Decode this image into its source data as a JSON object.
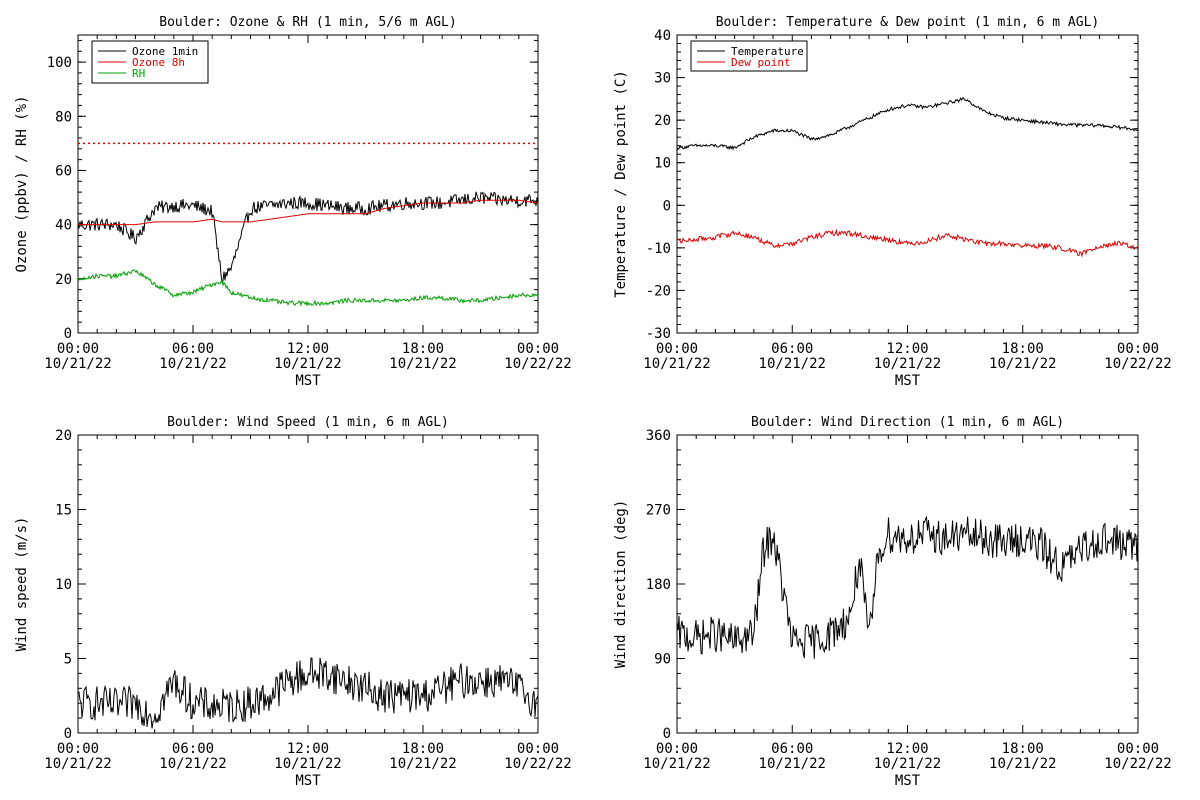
{
  "chart_data": [
    {
      "type": "line",
      "title": "Boulder: Ozone & RH (1 min, 5/6 m AGL)",
      "ylabel": "Ozone (ppbv) / RH (%)",
      "xlabel": "MST",
      "ylim": [
        0,
        110
      ],
      "yticks": [
        0,
        20,
        40,
        60,
        80,
        100
      ],
      "x_ticks": [
        {
          "time": "00:00",
          "date": "10/21/22"
        },
        {
          "time": "06:00",
          "date": "10/21/22"
        },
        {
          "time": "12:00",
          "date": "10/21/22"
        },
        {
          "time": "18:00",
          "date": "10/21/22"
        },
        {
          "time": "00:00",
          "date": "10/22/22"
        }
      ],
      "x_hours": [
        0,
        1,
        2,
        3,
        4,
        5,
        6,
        7,
        7.5,
        8,
        9,
        10,
        11,
        12,
        13,
        14,
        15,
        16,
        17,
        18,
        19,
        20,
        21,
        22,
        23,
        24
      ],
      "legend": "top-left",
      "reference_lines": [
        {
          "y": 70,
          "color": "#e00000",
          "style": "dotted"
        }
      ],
      "series": [
        {
          "name": "Ozone 1min",
          "color": "#000000",
          "noise": 2.5,
          "values": [
            40,
            40,
            40,
            35,
            46,
            47,
            47,
            45,
            20,
            24,
            46,
            47,
            48,
            48,
            47,
            46,
            46,
            47,
            48,
            48,
            48,
            49,
            50,
            49,
            49,
            49
          ]
        },
        {
          "name": "Ozone 8h",
          "color": "#e00000",
          "noise": 0,
          "values": [
            40,
            40,
            40,
            40,
            41,
            41,
            41,
            42,
            41,
            41,
            41,
            42,
            43,
            44,
            44,
            44,
            44,
            46,
            47,
            48,
            48,
            48,
            49,
            49,
            49,
            48
          ]
        },
        {
          "name": "RH",
          "color": "#00a000",
          "noise": 0.8,
          "values": [
            20,
            21,
            21,
            23,
            18,
            14,
            15,
            18,
            19,
            15,
            13,
            12,
            11,
            11,
            11,
            12,
            12,
            12,
            12,
            13,
            13,
            12,
            12,
            13,
            14,
            14
          ]
        }
      ]
    },
    {
      "type": "line",
      "title": "Boulder: Temperature & Dew point (1 min, 6 m AGL)",
      "ylabel": "Temperature / Dew point (C)",
      "xlabel": "MST",
      "ylim": [
        -30,
        40
      ],
      "yticks": [
        -30,
        -20,
        -10,
        0,
        10,
        20,
        30,
        40
      ],
      "x_ticks": [
        {
          "time": "00:00",
          "date": "10/21/22"
        },
        {
          "time": "06:00",
          "date": "10/21/22"
        },
        {
          "time": "12:00",
          "date": "10/21/22"
        },
        {
          "time": "18:00",
          "date": "10/21/22"
        },
        {
          "time": "00:00",
          "date": "10/22/22"
        }
      ],
      "x_hours": [
        0,
        1,
        2,
        3,
        4,
        5,
        6,
        7,
        8,
        9,
        10,
        11,
        12,
        13,
        14,
        15,
        16,
        17,
        18,
        19,
        20,
        21,
        22,
        23,
        24
      ],
      "legend": "top-left",
      "series": [
        {
          "name": "Temperature",
          "color": "#000000",
          "noise": 0.4,
          "values": [
            13.5,
            14,
            14,
            13.5,
            16,
            17.5,
            17.5,
            15.5,
            16.5,
            18.5,
            20.5,
            22.5,
            23.5,
            23,
            24,
            25,
            22,
            20.5,
            20,
            19.5,
            19,
            18.8,
            18.8,
            18.3,
            17.8
          ]
        },
        {
          "name": "Dew point",
          "color": "#e00000",
          "noise": 0.6,
          "values": [
            -8.5,
            -8,
            -7.5,
            -6.5,
            -7.5,
            -9.5,
            -9,
            -7.5,
            -6.5,
            -6.5,
            -7.5,
            -8,
            -9,
            -8.5,
            -7,
            -8,
            -9,
            -9,
            -9.5,
            -9.5,
            -10,
            -11.5,
            -9.5,
            -9,
            -10
          ]
        }
      ]
    },
    {
      "type": "line",
      "title": "Boulder: Wind Speed (1 min, 6 m AGL)",
      "ylabel": "Wind speed (m/s)",
      "xlabel": "MST",
      "ylim": [
        0,
        20
      ],
      "yticks": [
        0,
        5,
        10,
        15,
        20
      ],
      "x_ticks": [
        {
          "time": "00:00",
          "date": "10/21/22"
        },
        {
          "time": "06:00",
          "date": "10/21/22"
        },
        {
          "time": "12:00",
          "date": "10/21/22"
        },
        {
          "time": "18:00",
          "date": "10/21/22"
        },
        {
          "time": "00:00",
          "date": "10/22/22"
        }
      ],
      "x_hours": [
        0,
        1,
        2,
        3,
        4,
        5,
        6,
        7,
        8,
        9,
        10,
        11,
        12,
        13,
        14,
        15,
        16,
        17,
        18,
        19,
        20,
        21,
        22,
        23,
        24
      ],
      "series": [
        {
          "color": "#000000",
          "noise": 1.2,
          "values": [
            2,
            2,
            1.8,
            2,
            1.2,
            3.5,
            2,
            1.8,
            1.8,
            2,
            2.5,
            3.5,
            4,
            4,
            3.5,
            3,
            2.5,
            2.5,
            2.5,
            3,
            3.5,
            3.5,
            3.5,
            3,
            2
          ]
        }
      ]
    },
    {
      "type": "line",
      "title": "Boulder: Wind Direction (1 min, 6 m AGL)",
      "ylabel": "Wind direction (deg)",
      "xlabel": "MST",
      "ylim": [
        0,
        360
      ],
      "yticks": [
        0,
        90,
        180,
        270,
        360
      ],
      "x_ticks": [
        {
          "time": "00:00",
          "date": "10/21/22"
        },
        {
          "time": "06:00",
          "date": "10/21/22"
        },
        {
          "time": "12:00",
          "date": "10/21/22"
        },
        {
          "time": "18:00",
          "date": "10/21/22"
        },
        {
          "time": "00:00",
          "date": "10/22/22"
        }
      ],
      "x_hours": [
        0,
        1,
        2,
        3,
        4,
        4.5,
        5,
        6,
        7,
        8,
        9,
        9.5,
        10,
        10.5,
        11,
        12,
        13,
        14,
        15,
        16,
        17,
        18,
        19,
        20,
        21,
        22,
        23,
        24
      ],
      "series": [
        {
          "color": "#000000",
          "noise": 22,
          "values": [
            120,
            115,
            120,
            110,
            120,
            220,
            240,
            110,
            110,
            120,
            140,
            210,
            110,
            220,
            240,
            235,
            240,
            235,
            240,
            235,
            230,
            235,
            225,
            200,
            220,
            235,
            230,
            225
          ]
        }
      ]
    }
  ]
}
